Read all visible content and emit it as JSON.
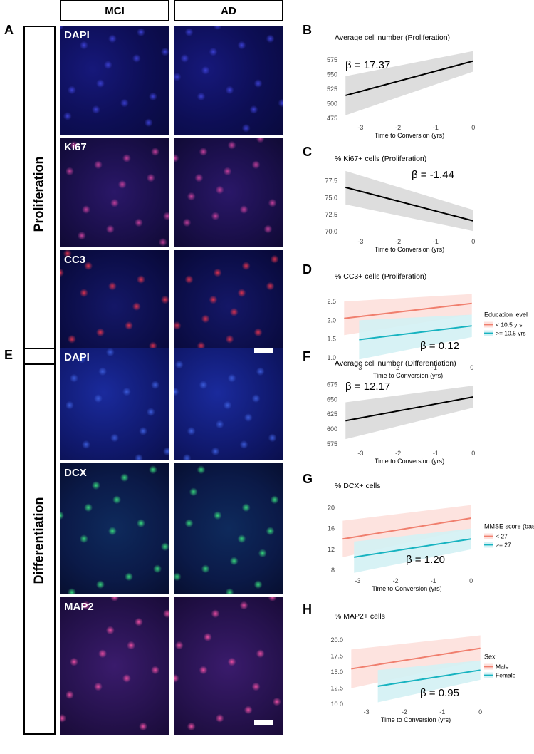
{
  "columns": [
    "MCI",
    "AD"
  ],
  "sections": [
    {
      "letter": "A",
      "label": "Proliferation",
      "stains": [
        "DAPI",
        "Ki67",
        "CC3"
      ]
    },
    {
      "letter": "E",
      "label": "Differentiation",
      "stains": [
        "DAPI",
        "DCX",
        "MAP2"
      ]
    }
  ],
  "chart_data": [
    {
      "letter": "B",
      "type": "line",
      "title": "Average cell number (Proliferation)",
      "xlabel": "Time to Conversion (yrs)",
      "ylabel": "",
      "xlim": [
        -3.5,
        0.1
      ],
      "ylim": [
        470,
        592
      ],
      "xticks": [
        -3,
        -2,
        -1,
        0
      ],
      "xtick_labels": [
        "-3",
        "-2",
        "-1",
        "0"
      ],
      "yticks": [
        475,
        500,
        525,
        550,
        575
      ],
      "ytick_labels": [
        "475",
        "500",
        "525",
        "550",
        "575"
      ],
      "annotation": "β = 17.37",
      "legend_title": "",
      "series": [
        {
          "color": "#000000",
          "band_color": "#d9d9d9",
          "x": [
            -3.4,
            0
          ],
          "y": [
            514,
            573
          ],
          "lower": [
            480,
            555
          ],
          "upper": [
            547,
            590
          ]
        }
      ]
    },
    {
      "letter": "C",
      "type": "line",
      "title": "% Ki67+ cells (Proliferation)",
      "xlabel": "Time to Conversion (yrs)",
      "ylabel": "",
      "xlim": [
        -3.5,
        0.1
      ],
      "ylim": [
        69.5,
        79.2
      ],
      "xticks": [
        -3,
        -2,
        -1,
        0
      ],
      "xtick_labels": [
        "-3",
        "-2",
        "-1",
        "0"
      ],
      "yticks": [
        70.0,
        72.5,
        75.0,
        77.5
      ],
      "ytick_labels": [
        "70.0",
        "72.5",
        "75.0",
        "77.5"
      ],
      "annotation": "β = -1.44",
      "legend_title": "",
      "series": [
        {
          "color": "#000000",
          "band_color": "#d9d9d9",
          "x": [
            -3.4,
            0
          ],
          "y": [
            76.5,
            71.6
          ],
          "lower": [
            74.0,
            70.1
          ],
          "upper": [
            78.9,
            73.2
          ]
        }
      ]
    },
    {
      "letter": "D",
      "type": "line",
      "title": "% CC3+ cells (Proliferation)",
      "xlabel": "Time to Conversion (yrs)",
      "ylabel": "",
      "xlim": [
        -3.5,
        0.1
      ],
      "ylim": [
        0.9,
        2.75
      ],
      "xticks": [
        -3,
        -2,
        -1,
        0
      ],
      "xtick_labels": [
        "-3",
        "-2",
        "-1",
        "0"
      ],
      "yticks": [
        1.0,
        1.5,
        2.0,
        2.5
      ],
      "ytick_labels": [
        "1.0",
        "1.5",
        "2.0",
        "2.5"
      ],
      "annotation": "β = 0.12",
      "legend_title": "Education level",
      "series": [
        {
          "name": "< 10.5 yrs",
          "color": "#f07f6e",
          "band_color": "#fde0dc",
          "x": [
            -3.4,
            0
          ],
          "y": [
            2.05,
            2.45
          ],
          "lower": [
            1.6,
            2.15
          ],
          "upper": [
            2.5,
            2.7
          ]
        },
        {
          "name": ">= 10.5 yrs",
          "color": "#17b3c0",
          "band_color": "#d3f1f4",
          "x": [
            -3.0,
            0
          ],
          "y": [
            1.48,
            1.85
          ],
          "lower": [
            0.95,
            1.55
          ],
          "upper": [
            2.0,
            2.15
          ]
        }
      ]
    },
    {
      "letter": "F",
      "type": "line",
      "title": "Average cell number (Differentiation)",
      "xlabel": "Time to Conversion (yrs)",
      "ylabel": "",
      "xlim": [
        -3.5,
        0.1
      ],
      "ylim": [
        570,
        690
      ],
      "xticks": [
        -3,
        -2,
        -1,
        0
      ],
      "xtick_labels": [
        "-3",
        "-2",
        "-1",
        "0"
      ],
      "yticks": [
        575,
        600,
        625,
        650,
        675
      ],
      "ytick_labels": [
        "575",
        "600",
        "625",
        "650",
        "675"
      ],
      "annotation": "β = 12.17",
      "legend_title": "",
      "series": [
        {
          "color": "#000000",
          "band_color": "#d9d9d9",
          "x": [
            -3.4,
            0
          ],
          "y": [
            614,
            654
          ],
          "lower": [
            583,
            636
          ],
          "upper": [
            645,
            673
          ]
        }
      ]
    },
    {
      "letter": "G",
      "type": "line",
      "title": "% DCX+ cells",
      "xlabel": "Time to Conversion (yrs)",
      "ylabel": "",
      "xlim": [
        -3.5,
        0.1
      ],
      "ylim": [
        7.2,
        21
      ],
      "xticks": [
        -3,
        -2,
        -1,
        0
      ],
      "xtick_labels": [
        "-3",
        "-2",
        "-1",
        "0"
      ],
      "yticks": [
        8,
        12,
        16,
        20
      ],
      "ytick_labels": [
        "8",
        "12",
        "16",
        "20"
      ],
      "annotation": "β = 1.20",
      "legend_title": "MMSE score (baseline)",
      "series": [
        {
          "name": "< 27",
          "color": "#f07f6e",
          "band_color": "#fde0dc",
          "x": [
            -3.4,
            0
          ],
          "y": [
            14.0,
            18.0
          ],
          "lower": [
            10.5,
            16.0
          ],
          "upper": [
            17.5,
            20.5
          ]
        },
        {
          "name": ">= 27",
          "color": "#17b3c0",
          "band_color": "#d3f1f4",
          "x": [
            -3.1,
            0
          ],
          "y": [
            10.5,
            14.0
          ],
          "lower": [
            7.5,
            12.0
          ],
          "upper": [
            13.5,
            16.0
          ]
        }
      ]
    },
    {
      "letter": "H",
      "type": "line",
      "title": "% MAP2+ cells",
      "xlabel": "Time to Conversion (yrs)",
      "ylabel": "",
      "xlim": [
        -3.5,
        0.1
      ],
      "ylim": [
        9.8,
        21.2
      ],
      "xticks": [
        -3,
        -2,
        -1,
        0
      ],
      "xtick_labels": [
        "-3",
        "-2",
        "-1",
        "0"
      ],
      "yticks": [
        10.0,
        12.5,
        15.0,
        17.5,
        20.0
      ],
      "ytick_labels": [
        "10.0",
        "12.5",
        "15.0",
        "17.5",
        "20.0"
      ],
      "annotation": "β = 0.95",
      "legend_title": "Sex",
      "series": [
        {
          "name": "Male",
          "color": "#f07f6e",
          "band_color": "#fde0dc",
          "x": [
            -3.4,
            0
          ],
          "y": [
            15.5,
            18.7
          ],
          "lower": [
            12.5,
            16.8
          ],
          "upper": [
            18.5,
            20.7
          ]
        },
        {
          "name": "Female",
          "color": "#17b3c0",
          "band_color": "#d3f1f4",
          "x": [
            -2.7,
            0
          ],
          "y": [
            12.8,
            15.3
          ],
          "lower": [
            10.3,
            13.8
          ],
          "upper": [
            15.3,
            16.8
          ]
        }
      ]
    }
  ]
}
